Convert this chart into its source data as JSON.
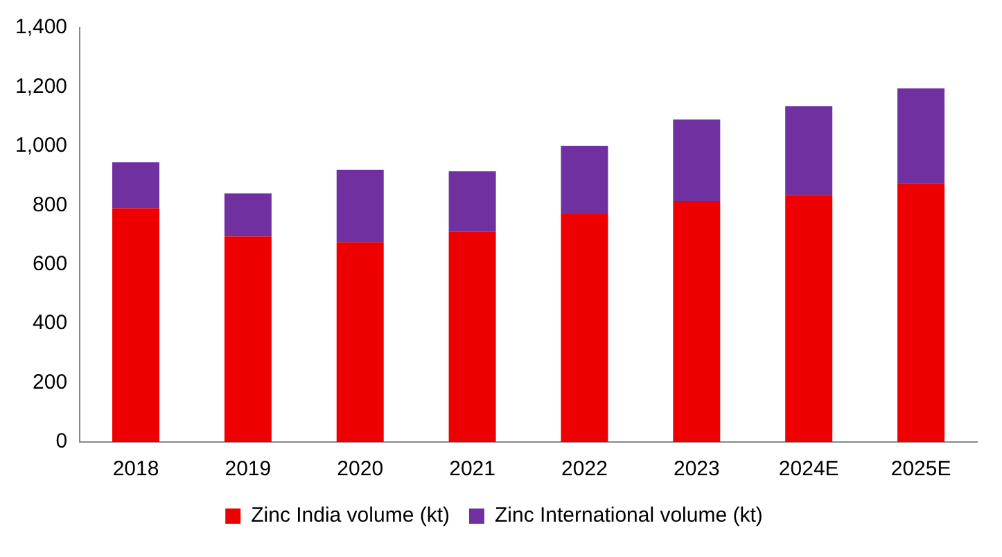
{
  "chart_data": {
    "type": "bar",
    "stacked": true,
    "categories": [
      "2018",
      "2019",
      "2020",
      "2021",
      "2022",
      "2023",
      "2024E",
      "2025E"
    ],
    "series": [
      {
        "name": "Zinc India volume (kt)",
        "color": "#ee0000",
        "values": [
          790,
          695,
          675,
          710,
          770,
          815,
          835,
          875
        ]
      },
      {
        "name": "Zinc International volume (kt)",
        "color": "#7030a0",
        "values": [
          155,
          145,
          245,
          205,
          230,
          275,
          300,
          320
        ]
      }
    ],
    "ylim": [
      0,
      1400
    ],
    "yticks": [
      0,
      200,
      400,
      600,
      800,
      {
        "value": 1000,
        "label": "1,000"
      },
      {
        "value": 1200,
        "label": "1,200"
      },
      {
        "value": 1400,
        "label": "1,400"
      }
    ],
    "grid": false,
    "legend": "bottom"
  }
}
